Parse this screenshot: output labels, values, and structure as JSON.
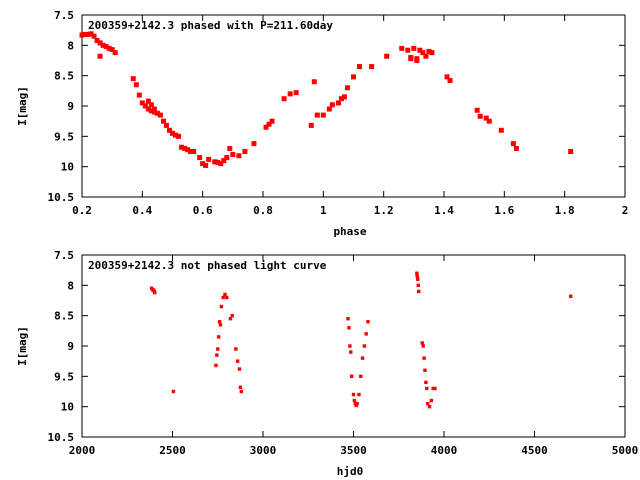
{
  "colors": {
    "points": "#ff0000",
    "axes": "#000000",
    "background": "#ffffff"
  },
  "chart_data": [
    {
      "type": "scatter",
      "title": "200359+2142.3 phased with P=211.60day",
      "xlabel": "phase",
      "ylabel": "I[mag]",
      "xlim": [
        0.2,
        2.0
      ],
      "ylim": [
        7.5,
        10.5
      ],
      "y_inverted": true,
      "grid": false,
      "xticks": [
        "0.2",
        "0.4",
        "0.6",
        "0.8",
        "1",
        "1.2",
        "1.4",
        "1.6",
        "1.8",
        "2"
      ],
      "yticks": [
        "7.5",
        "8",
        "8.5",
        "9",
        "9.5",
        "10",
        "10.5"
      ],
      "x": [
        0.2,
        0.21,
        0.22,
        0.23,
        0.24,
        0.25,
        0.26,
        0.27,
        0.28,
        0.29,
        0.3,
        0.31,
        0.26,
        0.37,
        0.38,
        0.39,
        0.4,
        0.41,
        0.42,
        0.42,
        0.43,
        0.43,
        0.44,
        0.44,
        0.45,
        0.46,
        0.47,
        0.48,
        0.49,
        0.5,
        0.51,
        0.52,
        0.53,
        0.54,
        0.55,
        0.56,
        0.57,
        0.59,
        0.6,
        0.61,
        0.62,
        0.64,
        0.65,
        0.66,
        0.67,
        0.68,
        0.7,
        0.69,
        0.72,
        0.74,
        0.77,
        0.81,
        0.82,
        0.83,
        0.87,
        0.89,
        0.91,
        0.96,
        0.97,
        0.98,
        1.0,
        1.02,
        1.03,
        1.05,
        1.06,
        1.07,
        1.08,
        1.1,
        1.12,
        1.16,
        1.21,
        1.26,
        1.28,
        1.29,
        1.3,
        1.31,
        1.32,
        1.33,
        1.34,
        1.35,
        1.36,
        1.29,
        1.31,
        1.41,
        1.42,
        1.51,
        1.52,
        1.54,
        1.55,
        1.59,
        1.63,
        1.64,
        1.82
      ],
      "y": [
        7.83,
        7.82,
        7.82,
        7.81,
        7.85,
        7.92,
        7.96,
        8.0,
        8.02,
        8.05,
        8.07,
        8.12,
        8.18,
        8.55,
        8.65,
        8.82,
        8.95,
        9.0,
        9.05,
        8.92,
        9.08,
        8.98,
        9.1,
        9.05,
        9.12,
        9.15,
        9.25,
        9.32,
        9.4,
        9.45,
        9.48,
        9.5,
        9.68,
        9.7,
        9.72,
        9.75,
        9.75,
        9.85,
        9.95,
        9.98,
        9.88,
        9.92,
        9.93,
        9.95,
        9.9,
        9.85,
        9.8,
        9.7,
        9.82,
        9.75,
        9.62,
        9.35,
        9.3,
        9.25,
        8.88,
        8.8,
        8.78,
        9.32,
        8.6,
        9.15,
        9.15,
        9.05,
        8.98,
        8.95,
        8.88,
        8.85,
        8.7,
        8.52,
        8.35,
        8.35,
        8.18,
        8.05,
        8.08,
        8.2,
        8.05,
        8.22,
        8.08,
        8.12,
        8.18,
        8.1,
        8.12,
        8.22,
        8.25,
        8.52,
        8.58,
        9.07,
        9.17,
        9.2,
        9.25,
        9.4,
        9.62,
        9.7,
        9.75
      ]
    },
    {
      "type": "scatter",
      "title": "200359+2142.3 not phased light curve",
      "xlabel": "hjd0",
      "ylabel": "I[mag]",
      "xlim": [
        2000,
        5000
      ],
      "ylim": [
        7.5,
        10.5
      ],
      "y_inverted": true,
      "grid": false,
      "xticks": [
        "2000",
        "2500",
        "3000",
        "3500",
        "4000",
        "4500",
        "5000"
      ],
      "yticks": [
        "7.5",
        "8",
        "8.5",
        "9",
        "9.5",
        "10",
        "10.5"
      ],
      "x": [
        2385,
        2390,
        2395,
        2400,
        2402,
        2505,
        2740,
        2745,
        2750,
        2755,
        2760,
        2765,
        2770,
        2780,
        2790,
        2800,
        2820,
        2830,
        2850,
        2860,
        2870,
        2875,
        2880,
        3470,
        3475,
        3480,
        3485,
        3490,
        3500,
        3505,
        3510,
        3515,
        3520,
        3530,
        3540,
        3550,
        3560,
        3570,
        3580,
        3850,
        3852,
        3855,
        3858,
        3860,
        3880,
        3885,
        3890,
        3895,
        3900,
        3905,
        3910,
        3920,
        3930,
        3940,
        3950,
        4700
      ],
      "y": [
        8.05,
        8.07,
        8.08,
        8.1,
        8.12,
        9.75,
        9.32,
        9.15,
        9.05,
        8.85,
        8.6,
        8.65,
        8.35,
        8.2,
        8.15,
        8.2,
        8.55,
        8.5,
        9.05,
        9.25,
        9.38,
        9.68,
        9.75,
        8.55,
        8.7,
        9.0,
        9.1,
        9.5,
        9.8,
        9.9,
        9.95,
        9.98,
        9.95,
        9.8,
        9.5,
        9.2,
        9.0,
        8.8,
        8.6,
        7.8,
        7.85,
        7.9,
        8.0,
        8.1,
        8.95,
        9.0,
        9.2,
        9.4,
        9.6,
        9.7,
        9.95,
        10.0,
        9.9,
        9.7,
        9.7,
        8.18
      ]
    }
  ]
}
